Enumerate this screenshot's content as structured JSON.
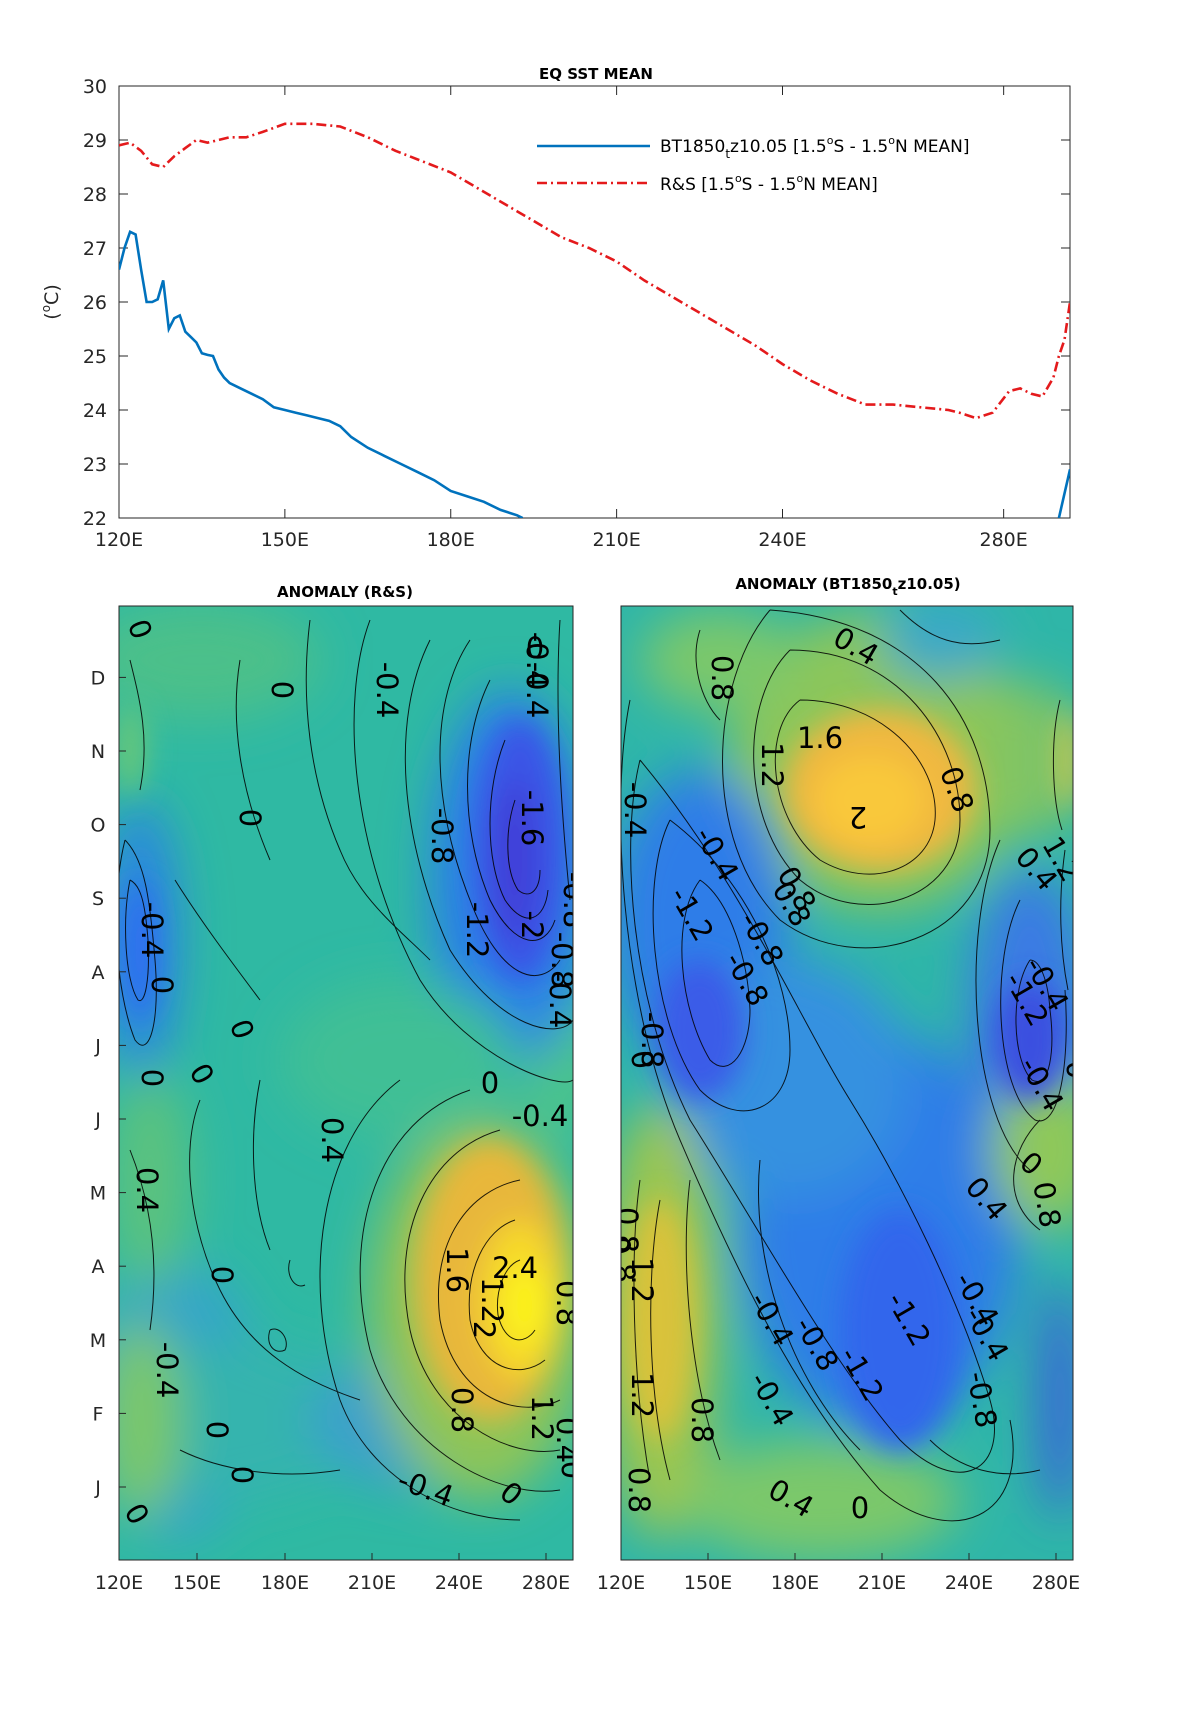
{
  "chart_data": [
    {
      "type": "line",
      "title": "EQ SST MEAN",
      "ylabel": "(°C)",
      "xlim": [
        120,
        292
      ],
      "ylim": [
        22,
        30
      ],
      "yticks": [
        22,
        23,
        24,
        25,
        26,
        27,
        28,
        29,
        30
      ],
      "xticks": [
        120,
        150,
        180,
        210,
        240,
        280
      ],
      "xticklabels": [
        "120E",
        "150E",
        "180E",
        "210E",
        "240E",
        "280E"
      ],
      "legend_position": "top-right",
      "series": [
        {
          "name": "BT1850tz10.05 [1.5°S - 1.5°N MEAN]",
          "name_main": "BT1850",
          "name_sub": "t",
          "name_rest": "z10.05 [1.5",
          "name_sup1": "o",
          "name_mid": "S - 1.5",
          "name_sup2": "o",
          "name_end": "N MEAN]",
          "color": "#0072BD",
          "style": "solid",
          "x": [
            120,
            121,
            122,
            123,
            124,
            125,
            126,
            127,
            128,
            129,
            130,
            131,
            132,
            133,
            134,
            135,
            136,
            137,
            138,
            139,
            140,
            142,
            144,
            146,
            148,
            150,
            152,
            154,
            156,
            158,
            160,
            162,
            165,
            168,
            171,
            174,
            177,
            180,
            183,
            186,
            189,
            192,
            193
          ],
          "y": [
            26.6,
            27.0,
            27.3,
            27.25,
            26.6,
            26.0,
            26.0,
            26.05,
            26.4,
            25.5,
            25.7,
            25.75,
            25.45,
            25.35,
            25.25,
            25.05,
            25.02,
            25.0,
            24.75,
            24.6,
            24.5,
            24.4,
            24.3,
            24.2,
            24.05,
            24.0,
            23.95,
            23.9,
            23.85,
            23.8,
            23.7,
            23.5,
            23.3,
            23.15,
            23.0,
            22.85,
            22.7,
            22.5,
            22.4,
            22.3,
            22.15,
            22.05,
            22.0
          ]
        },
        {
          "name": "R&S [1.5°S - 1.5°N MEAN]",
          "name_main": "R&S [1.5",
          "name_sup1": "o",
          "name_mid": "S - 1.5",
          "name_sup2": "o",
          "name_end": "N MEAN]",
          "color": "#E41A1C",
          "style": "dashed",
          "x": [
            120,
            122,
            124,
            126,
            128,
            130,
            132,
            134,
            136,
            138,
            140,
            143,
            146,
            150,
            155,
            160,
            165,
            170,
            175,
            180,
            185,
            190,
            195,
            200,
            205,
            210,
            215,
            220,
            225,
            230,
            235,
            240,
            245,
            250,
            255,
            260,
            265,
            270,
            272,
            275,
            278,
            281,
            283,
            285,
            287,
            289,
            290,
            291,
            292
          ],
          "y": [
            28.9,
            28.95,
            28.8,
            28.55,
            28.5,
            28.7,
            28.85,
            29.0,
            28.95,
            29.0,
            29.05,
            29.05,
            29.15,
            29.3,
            29.3,
            29.25,
            29.05,
            28.8,
            28.6,
            28.4,
            28.1,
            27.8,
            27.5,
            27.2,
            27.0,
            26.75,
            26.4,
            26.1,
            25.8,
            25.5,
            25.2,
            24.85,
            24.55,
            24.3,
            24.1,
            24.1,
            24.05,
            24.0,
            23.95,
            23.85,
            23.95,
            24.35,
            24.4,
            24.3,
            24.25,
            24.6,
            25.0,
            25.3,
            26.0
          ]
        }
      ],
      "extra_segment_x": [
        290,
        292
      ],
      "extra_segment_y": [
        22.0,
        22.9
      ]
    },
    {
      "type": "heatmap",
      "title": "ANOMALY (R&S)",
      "xticklabels": [
        "120E",
        "150E",
        "180E",
        "210E",
        "240E",
        "280E"
      ],
      "yticklabels": [
        "J",
        "F",
        "M",
        "A",
        "M",
        "J",
        "J",
        "A",
        "S",
        "O",
        "N",
        "D"
      ],
      "colormap": "parula",
      "contour_labels": [
        "0",
        "0",
        "-0.4",
        "-0.4",
        "0",
        "-0.4",
        "0",
        "-1.6",
        "-0.8",
        "-0.8",
        "-1.2",
        "-2",
        "-0.8",
        "-0.4",
        "0",
        "-0.4",
        "0",
        "0",
        "0",
        "0",
        "-0.4",
        "0.4",
        "0.4",
        "0",
        "1.6",
        "2.4",
        "0.8",
        "1.2",
        "2",
        "-0.4",
        "0",
        "0.8",
        "1.2",
        "0.4",
        "0",
        "0",
        "-0.4",
        "0",
        "0"
      ]
    },
    {
      "type": "heatmap",
      "title": "ANOMALY (BT1850tz10.05)",
      "title_main": "ANOMALY (BT1850",
      "title_sub": "t",
      "title_rest": "z10.05)",
      "xticklabels": [
        "120E",
        "150E",
        "180E",
        "210E",
        "240E",
        "280E"
      ],
      "colormap": "parula",
      "contour_labels": [
        "0.4",
        "0.8",
        "1.6",
        "1.2",
        "2",
        "0.8",
        "-0.4",
        "-0.4",
        "1.2",
        "0.4",
        "0.8",
        "-1.2",
        "-0.8",
        "0.8",
        "-0.8",
        "-1.2",
        "-0.4",
        "0",
        "0",
        "-0.8",
        "-0.4",
        "0.8",
        "0.4",
        "0",
        "0.8",
        "-0.4",
        "0.8",
        "1.2",
        "-0.4",
        "-0.8",
        "-1.2",
        "-1.2",
        "-0.4",
        "-0.4",
        "-0.8",
        "0.8",
        "0.4",
        "0",
        "1.2",
        "0.8"
      ]
    }
  ]
}
